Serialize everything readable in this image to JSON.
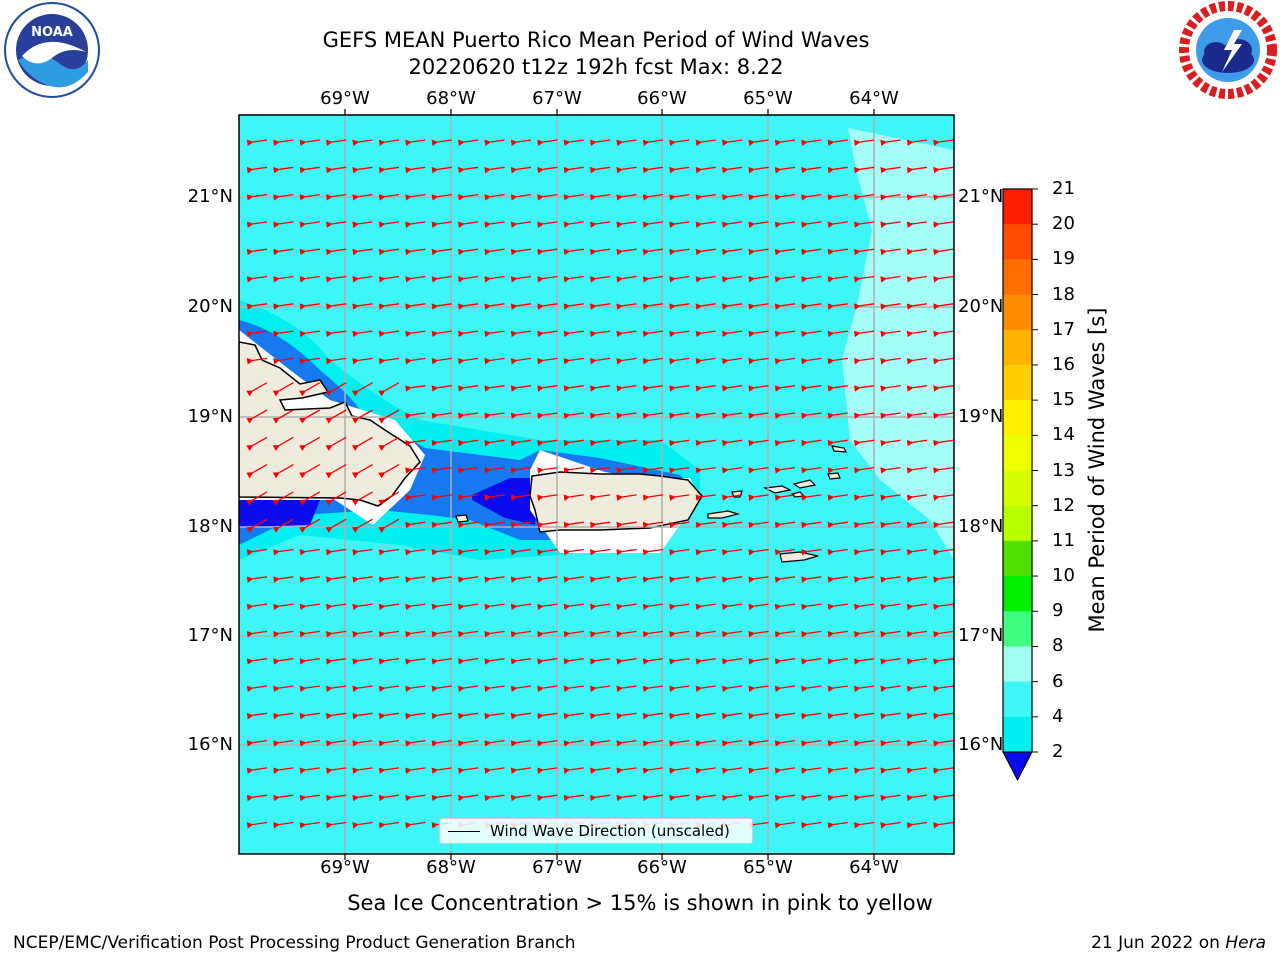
{
  "header": {
    "title_line1": "GEFS MEAN Puerto Rico Mean Period of Wind Waves",
    "title_line2": "20220620 t12z 192h fcst   Max: 8.22"
  },
  "logos": {
    "left": {
      "icon": "noaa-logo",
      "label": "NOAA"
    },
    "right": {
      "icon": "nws-logo"
    }
  },
  "map": {
    "lon_ticks": [
      "69°W",
      "68°W",
      "67°W",
      "66°W",
      "65°W",
      "64°W"
    ],
    "lat_ticks": [
      "21°N",
      "20°N",
      "19°N",
      "18°N",
      "17°N",
      "16°N"
    ],
    "wind_wave_direction": "toward west (easterly)",
    "colors": {
      "ocean": "#3ff6f6",
      "shallow_period": "#1779f0",
      "short_period": "#0a0cee",
      "land": "#efecdd",
      "arrows": "#ff0000",
      "grid": "#b0b0b0"
    }
  },
  "colorbar": {
    "label": "Mean Period of Wind Waves [s]",
    "ticks": [
      "21",
      "20",
      "19",
      "18",
      "17",
      "16",
      "15",
      "14",
      "13",
      "12",
      "11",
      "10",
      "9",
      "8",
      "6",
      "4",
      "2"
    ],
    "colors": [
      "#ff1e00",
      "#ff4a00",
      "#ff6e00",
      "#ff8c00",
      "#ffb400",
      "#ffd000",
      "#fff000",
      "#f0ff00",
      "#d8ff00",
      "#b8ff00",
      "#50e000",
      "#00f000",
      "#40ff80",
      "#a0fff0",
      "#3ff6f6",
      "#00f0f0",
      "#1779f0",
      "#0a0cee"
    ]
  },
  "legend": {
    "text": "Wind Wave Direction (unscaled)"
  },
  "note": "Sea Ice Concentration > 15% is shown in pink to yellow",
  "footer": {
    "left": "NCEP/EMC/Verification Post Processing Product Generation Branch",
    "date": "21 Jun 2022 on ",
    "host": "Hera"
  }
}
